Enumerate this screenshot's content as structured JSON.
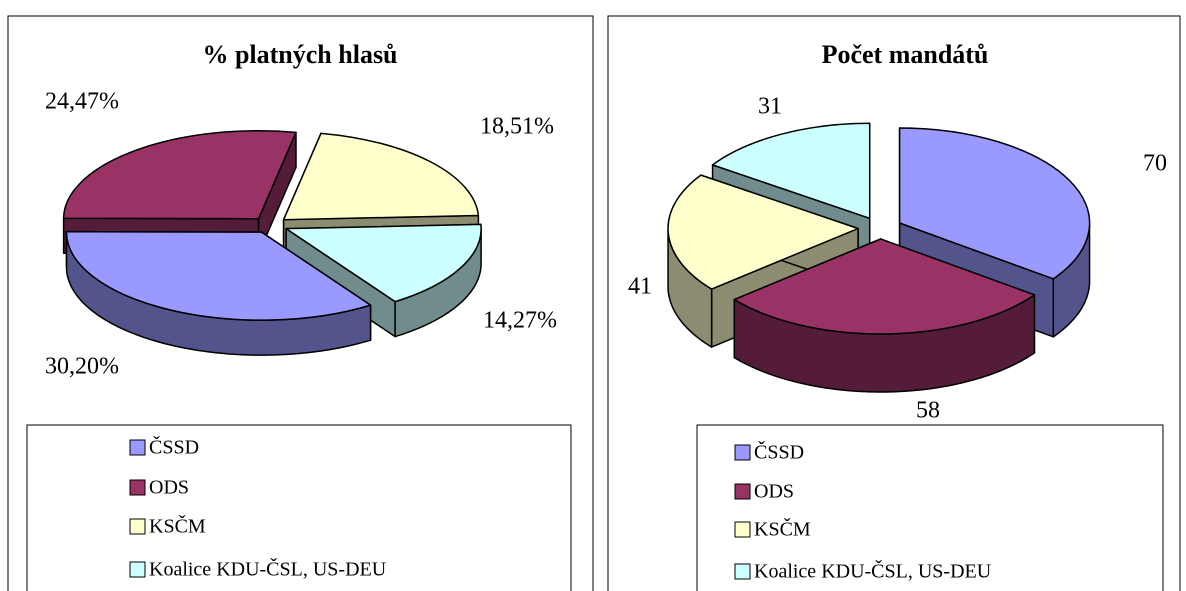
{
  "chart_data": [
    {
      "type": "pie",
      "title": "% platných hlasů",
      "categories": [
        "ČSSD",
        "ODS",
        "KSČM",
        "Koalice KDU-ČSL, US-DEU"
      ],
      "values": [
        30.2,
        24.47,
        18.51,
        14.27
      ],
      "value_labels": [
        "30,20%",
        "24,47%",
        "18,51%",
        "14,27%"
      ],
      "colors": [
        "#9999ff",
        "#993366",
        "#ffffcc",
        "#ccffff"
      ],
      "legend": "bottom"
    },
    {
      "type": "pie",
      "title": "Počet mandátů",
      "categories": [
        "ČSSD",
        "ODS",
        "KSČM",
        "Koalice KDU-ČSL, US-DEU"
      ],
      "values": [
        70,
        58,
        41,
        31
      ],
      "colors": [
        "#9999ff",
        "#993366",
        "#ffffcc",
        "#ccffff"
      ],
      "legend": "bottom"
    }
  ]
}
